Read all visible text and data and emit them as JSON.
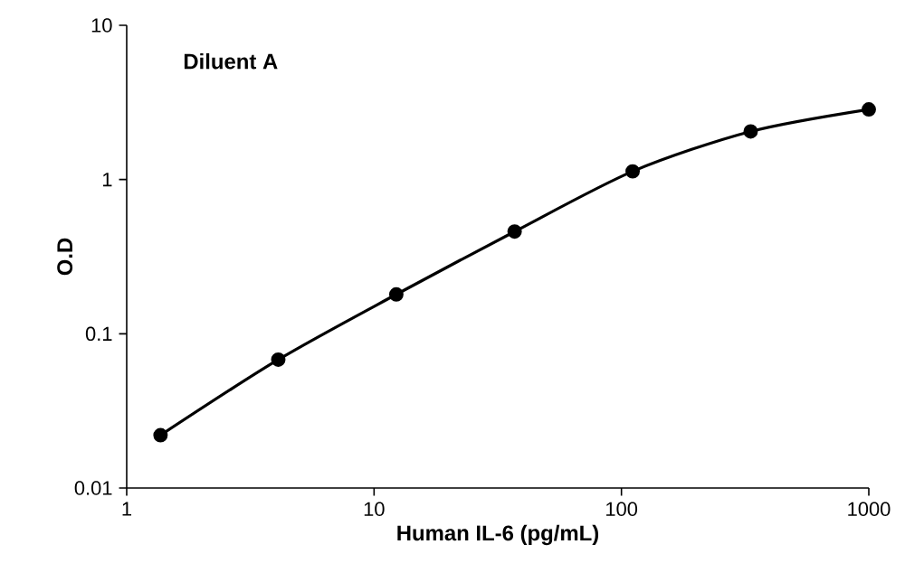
{
  "chart_data": {
    "type": "line",
    "title": "Diluent A",
    "xlabel": "Human IL-6 (pg/mL)",
    "ylabel": "O.D",
    "log": "xy",
    "x": [
      1.37,
      4.1,
      12.3,
      37,
      111,
      333,
      1000
    ],
    "series": [
      {
        "color": "#000000",
        "values": [
          0.022,
          0.068,
          0.18,
          0.46,
          1.13,
          2.05,
          2.85
        ]
      }
    ],
    "xlim": [
      1,
      1000
    ],
    "ylim": [
      0.01,
      10
    ],
    "xticks": [
      1,
      10,
      100,
      1000
    ],
    "yticks": [
      0.01,
      0.1,
      1,
      10
    ],
    "marker": "circle",
    "line_style": "solid"
  }
}
